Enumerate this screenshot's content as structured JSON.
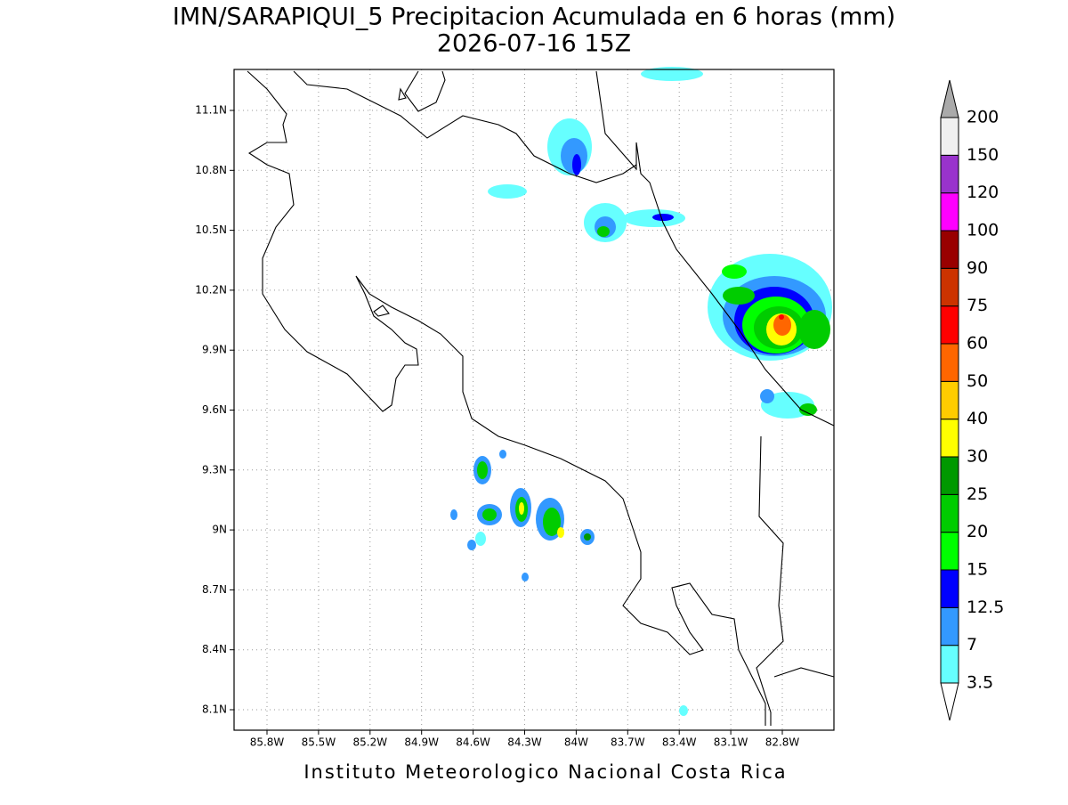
{
  "title": [
    "IMN/SARAPIQUI_5 Precipitacion Acumulada en 6 horas (mm)",
    "2026-07-16 15Z"
  ],
  "x_tick_labels": [
    "85.8W",
    "85.5W",
    "85.2W",
    "84.9W",
    "84.6W",
    "84.3W",
    "84W",
    "83.7W",
    "83.4W",
    "83.1W",
    "82.8W"
  ],
  "y_tick_labels": [
    "11.1N",
    "10.8N",
    "10.5N",
    "10.2N",
    "9.9N",
    "9.6N",
    "9.3N",
    "9N",
    "8.7N",
    "8.4N",
    "8.1N"
  ],
  "colorbar": {
    "levels": [
      3.5,
      7,
      12.5,
      15,
      20,
      25,
      30,
      40,
      50,
      60,
      75,
      90,
      100,
      120,
      150,
      200
    ],
    "colors": [
      "#66ffff",
      "#3399ff",
      "#0000ff",
      "#00ff00",
      "#00cc00",
      "#009900",
      "#ffff00",
      "#ffcc00",
      "#ff6600",
      "#ff0000",
      "#cc3300",
      "#990000",
      "#ff00ff",
      "#9933cc",
      "#f0f0f0"
    ],
    "under_color": "#ffffff",
    "over_color": "#aaaaaa"
  },
  "footer": "Instituto Meteorologico Nacional Costa Rica"
}
